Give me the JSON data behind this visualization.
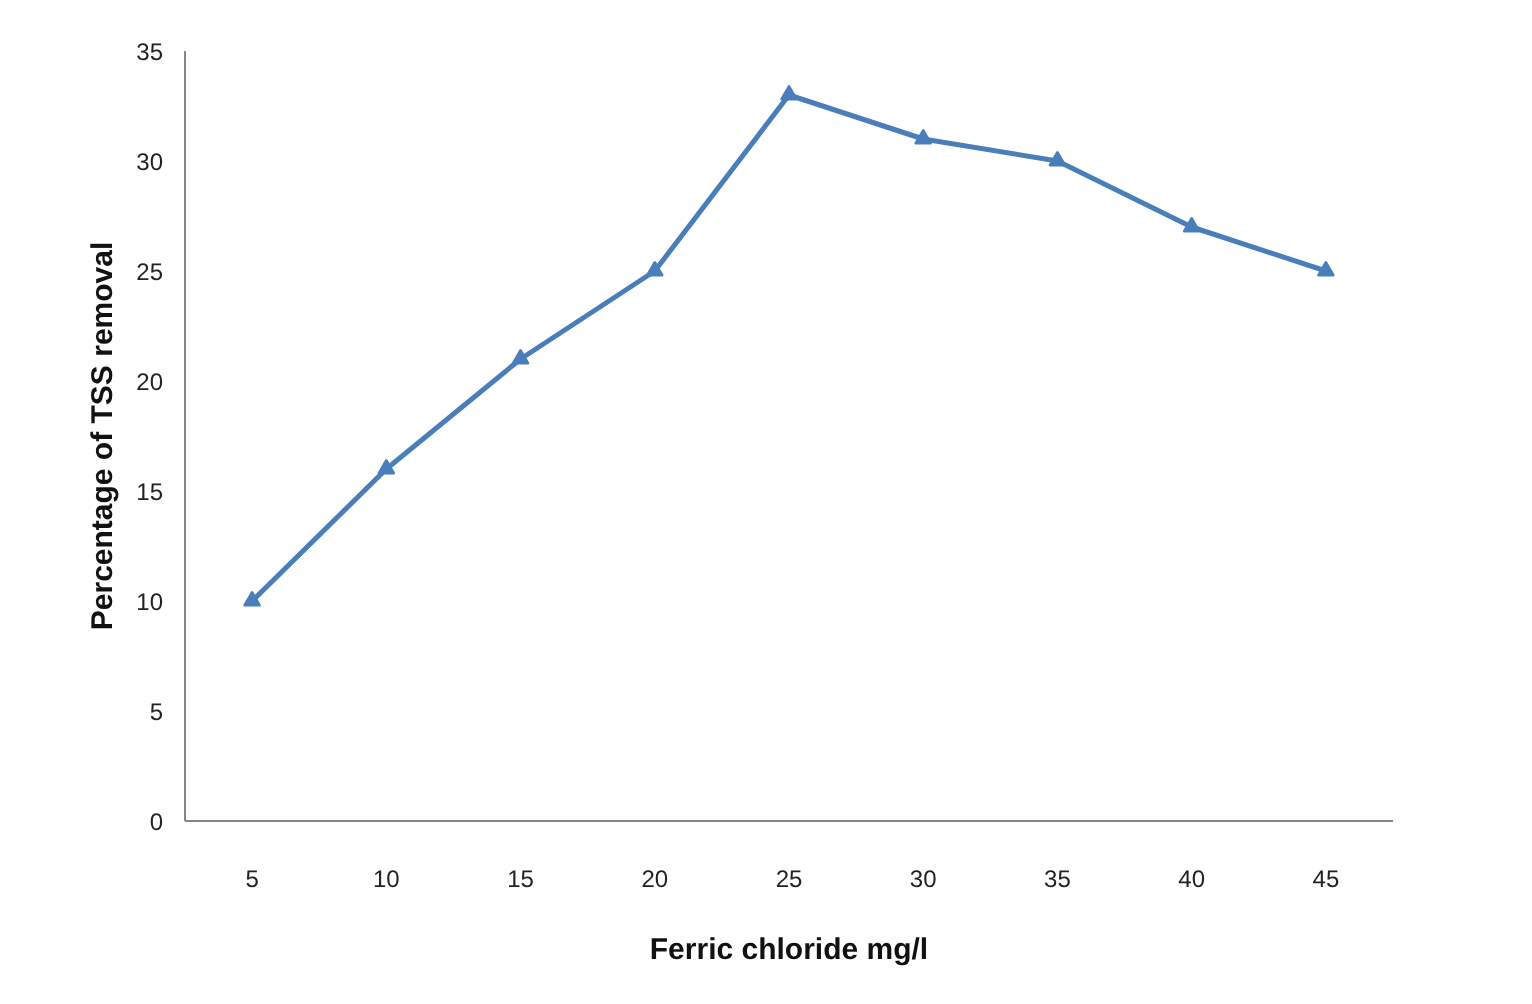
{
  "chart_data": {
    "type": "line",
    "xlabel": "Ferric chloride mg/l",
    "ylabel": "Percentage of TSS removal",
    "categories": [
      "5",
      "10",
      "15",
      "20",
      "25",
      "30",
      "35",
      "40",
      "45"
    ],
    "series": [
      {
        "color": "#4a7ebb",
        "values": [
          10,
          16,
          21,
          25,
          33,
          31,
          30,
          27,
          25
        ]
      }
    ],
    "ylim": [
      0,
      35
    ],
    "yticks": [
      0,
      5,
      10,
      15,
      20,
      25,
      30,
      35
    ],
    "grid": false,
    "marker": "triangle",
    "line_style": "solid"
  }
}
